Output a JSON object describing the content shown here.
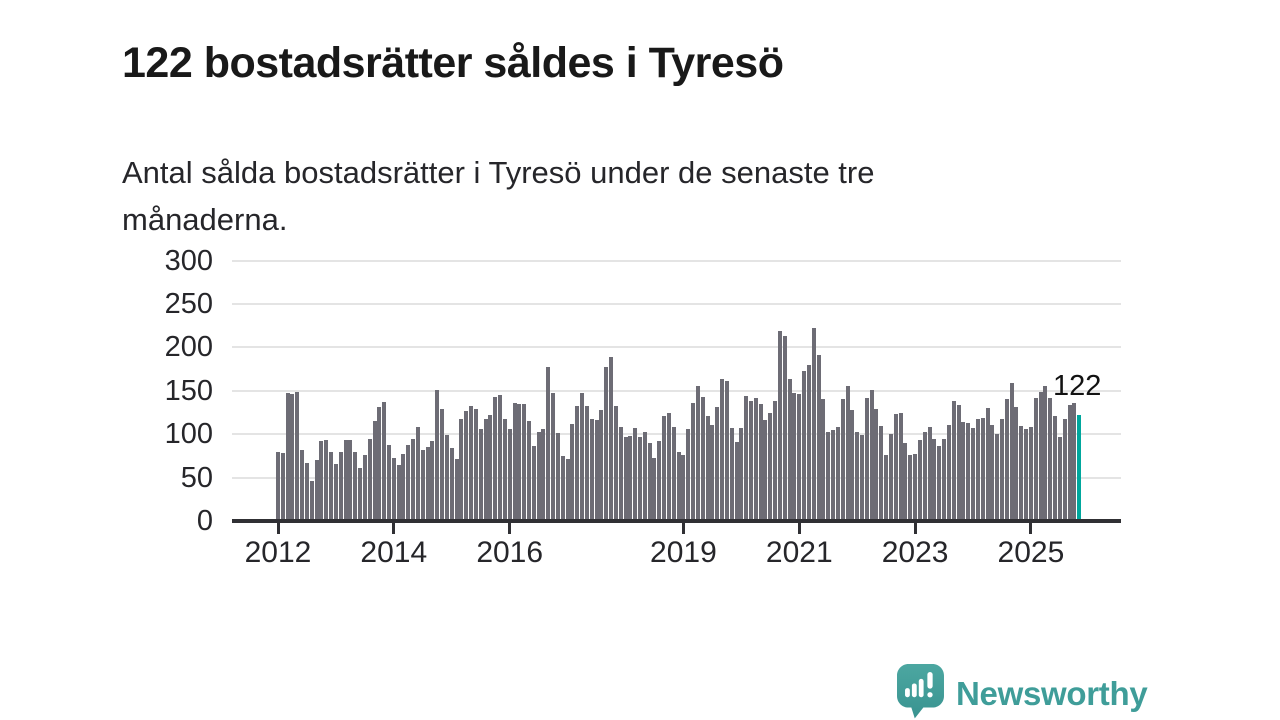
{
  "header": {
    "title": "122 bostadsrätter såldes i Tyresö",
    "subtitle_lines": [
      "Antal sålda bostadsrätter i Tyresö under de senaste tre",
      "månaderna."
    ]
  },
  "chart_data": {
    "type": "bar",
    "title": "122 bostadsrätter såldes i Tyresö",
    "xlabel": "",
    "ylabel": "",
    "frequency": "monthly",
    "x_start": {
      "year": 2012,
      "month": 1
    },
    "x_end": {
      "year": 2025,
      "month": 11
    },
    "x_tick_years": [
      2012,
      2014,
      2016,
      2019,
      2021,
      2023,
      2025
    ],
    "x_tick_labels": [
      "2012",
      "2014",
      "2016",
      "2019",
      "2021",
      "2023",
      "2025"
    ],
    "y_ticks": [
      0,
      50,
      100,
      150,
      200,
      250,
      300
    ],
    "ylim": [
      0,
      300
    ],
    "grid": true,
    "legend": "none",
    "bar_color": "#6d6c75",
    "values": [
      80,
      78,
      148,
      146,
      149,
      82,
      67,
      46,
      70,
      92,
      93,
      80,
      66,
      79,
      93,
      93,
      79,
      61,
      76,
      95,
      115,
      131,
      137,
      88,
      73,
      64,
      77,
      87,
      95,
      108,
      82,
      85,
      92,
      151,
      129,
      99,
      84,
      72,
      117,
      127,
      132,
      129,
      106,
      117,
      122,
      143,
      145,
      117,
      106,
      136,
      135,
      135,
      115,
      86,
      103,
      106,
      177,
      147,
      101,
      75,
      72,
      112,
      133,
      148,
      132,
      117,
      116,
      128,
      177,
      189,
      133,
      108,
      97,
      98,
      107,
      97,
      103,
      90,
      73,
      92,
      121,
      125,
      108,
      80,
      76,
      106,
      136,
      155,
      143,
      121,
      111,
      131,
      164,
      161,
      107,
      91,
      107,
      144,
      138,
      142,
      135,
      116,
      124,
      138,
      219,
      213,
      164,
      147,
      146,
      173,
      180,
      222,
      191,
      141,
      102,
      105,
      108,
      141,
      156,
      128,
      103,
      99,
      142,
      151,
      129,
      110,
      76,
      100,
      123,
      124,
      90,
      76,
      77,
      93,
      103,
      108,
      95,
      86,
      95,
      111,
      138,
      134,
      114,
      113,
      107,
      118,
      119,
      130,
      111,
      100,
      118,
      141,
      159,
      131,
      109,
      106,
      108,
      142,
      149,
      155,
      142,
      121,
      97,
      118,
      134,
      136,
      122
    ],
    "highlight": {
      "position": "last-bar",
      "value": 122,
      "label": "122",
      "color": "#00a79d"
    }
  },
  "footer": {
    "brand": "Newsworthy",
    "icon": "chart-speech-bubble-icon",
    "brand_color": "#3f9d99"
  },
  "colors": {
    "background": "#ffffff",
    "bar_gray": "#6d6c75",
    "accent_teal": "#00a79d",
    "gridline": "#e4e4e4",
    "axis": "#303034",
    "title_text": "#191919",
    "body_text": "#26262a",
    "brand_teal": "#3f9d99"
  }
}
